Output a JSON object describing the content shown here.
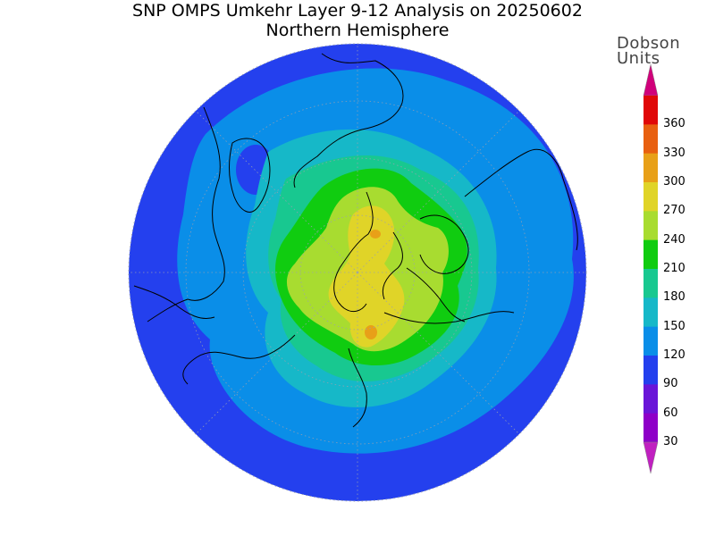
{
  "header": {
    "title": "SNP OMPS Umkehr Layer 9-12 Analysis on 20250602",
    "subtitle": "Northern Hemisphere"
  },
  "colorbar": {
    "unit_line1": "Dobson",
    "unit_line2": "Units",
    "ticks": [
      "30",
      "60",
      "90",
      "120",
      "150",
      "180",
      "210",
      "240",
      "270",
      "300",
      "330",
      "360"
    ],
    "band_colors": [
      "#8e00c8",
      "#6a16d8",
      "#2440ee",
      "#0a8ee8",
      "#16b8c8",
      "#18c890",
      "#10cc10",
      "#a8dc30",
      "#e0d428",
      "#e8a018",
      "#e86010",
      "#e00808",
      "#c00060"
    ],
    "below_color": "#c020c0",
    "above_color": "#d0007a"
  },
  "map": {
    "projection": "north-polar-stereographic",
    "background_color": "#2440ee",
    "palette_levels_du": [
      90,
      120,
      150,
      180,
      210,
      240,
      270
    ]
  }
}
